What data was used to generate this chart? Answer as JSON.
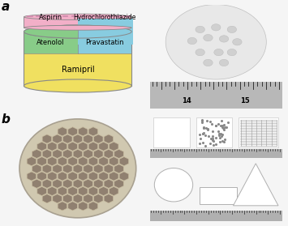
{
  "fig_width": 3.55,
  "fig_height": 2.79,
  "dpi": 100,
  "label_a": "a",
  "label_b": "b",
  "label_fontsize": 11,
  "label_fontweight": "bold",
  "pill_colors": {
    "top_pink": "#f2afc8",
    "aspirin": "#f2afc8",
    "hydrochlorothiazide": "#f2afc8",
    "atenolol": "#88cc88",
    "pravastatin": "#88cce0",
    "ramipril": "#f0e060",
    "side_green": "#60a860",
    "side_blue": "#60a8c8",
    "side_yellow": "#c8b830",
    "pill_outline": "#888888",
    "top_dashed": "#cc88aa"
  },
  "drug_labels": {
    "aspirin": "Aspirin",
    "hydrochlorothiazide": "Hydrochlorothiazide",
    "atenolol": "Atenolol",
    "pravastatin": "Pravastatin",
    "ramipril": "Ramipril"
  },
  "drug_label_fontsize": 6,
  "background_color": "#f5f5f5",
  "photo_bg": "#000000",
  "ruler_color": "#c8c8c8",
  "ruler_text_color": "#222222",
  "honey_bg": "#888888",
  "honey_tablet": "#d0c8b0",
  "honey_hex_face": "#908878",
  "honey_hex_edge": "#c8bca0",
  "panel_b_right_bg": "#c0c0c0"
}
